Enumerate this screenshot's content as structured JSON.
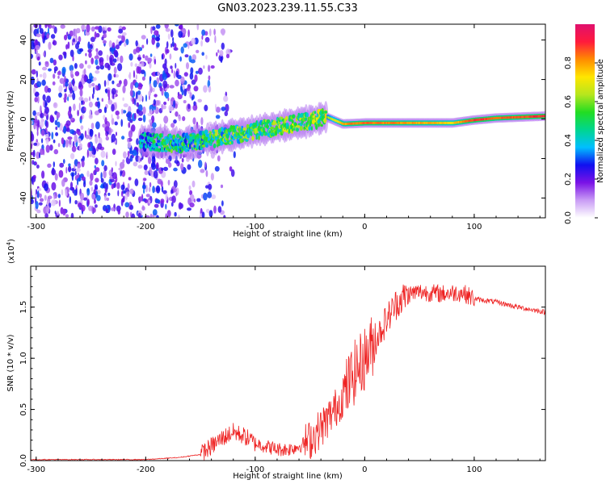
{
  "title": "GN03.2023.239.11.55.C33",
  "chart_data": [
    {
      "type": "heatmap",
      "title": "GN03.2023.239.11.55.C33",
      "xlabel": "Height of straight line (km)",
      "ylabel": "Frequency (Hz)",
      "xlim": [
        -305,
        165
      ],
      "ylim": [
        -50,
        48
      ],
      "xticks": [
        -300,
        -200,
        -100,
        0,
        100
      ],
      "yticks": [
        -40,
        -20,
        0,
        20,
        40
      ],
      "colorbar": {
        "label": "Normalized spectral amplitude",
        "range": [
          0.0,
          1.0
        ],
        "ticks": [
          "0.0",
          "0.2",
          "0.4",
          "0.6",
          "0.8"
        ],
        "colors": [
          "#ffffff",
          "#c99cf5",
          "#7a12e6",
          "#1010f0",
          "#00bfff",
          "#00d68f",
          "#22dd22",
          "#b6e61e",
          "#ffe600",
          "#ff8c00",
          "#ff1a3c",
          "#e0106e"
        ]
      },
      "signal_track": {
        "x": [
          -205,
          -190,
          -170,
          -150,
          -130,
          -110,
          -90,
          -70,
          -50,
          -35,
          -20,
          0,
          40,
          80,
          100,
          120,
          165
        ],
        "y": [
          -11,
          -12,
          -12.5,
          -11,
          -9,
          -7,
          -5,
          -3,
          -1,
          1,
          -2.5,
          -2,
          -2,
          -2,
          -0.5,
          0.5,
          1.5
        ],
        "amplitude": [
          0.3,
          0.4,
          0.45,
          0.45,
          0.48,
          0.5,
          0.52,
          0.55,
          0.55,
          0.6,
          0.8,
          0.85,
          0.8,
          0.75,
          0.9,
          0.85,
          0.9
        ]
      },
      "noise_region_x": [
        -305,
        -175
      ]
    },
    {
      "type": "line",
      "xlabel": "Height of straight line (km)",
      "ylabel": "SNR (10 * v/v)",
      "y_multiplier": "(x10^4)",
      "xlim": [
        -305,
        165
      ],
      "ylim": [
        0,
        1.9
      ],
      "xticks": [
        -300,
        -200,
        -100,
        0,
        100
      ],
      "yticks": [
        "0.0",
        "0.5",
        "1.0",
        "1.5"
      ],
      "series": [
        {
          "color": "#ee2222",
          "x": [
            -305,
            -250,
            -200,
            -170,
            -150,
            -140,
            -130,
            -120,
            -110,
            -100,
            -90,
            -80,
            -70,
            -60,
            -50,
            -40,
            -30,
            -20,
            -10,
            -5,
            0,
            10,
            20,
            30,
            40,
            50,
            60,
            70,
            80,
            90,
            100,
            120,
            140,
            165
          ],
          "y": [
            0.01,
            0.01,
            0.01,
            0.03,
            0.06,
            0.14,
            0.22,
            0.28,
            0.24,
            0.17,
            0.14,
            0.11,
            0.11,
            0.14,
            0.2,
            0.32,
            0.46,
            0.62,
            0.85,
            0.92,
            1.0,
            1.18,
            1.38,
            1.55,
            1.63,
            1.65,
            1.64,
            1.63,
            1.64,
            1.64,
            1.58,
            1.55,
            1.5,
            1.45
          ]
        }
      ]
    }
  ]
}
